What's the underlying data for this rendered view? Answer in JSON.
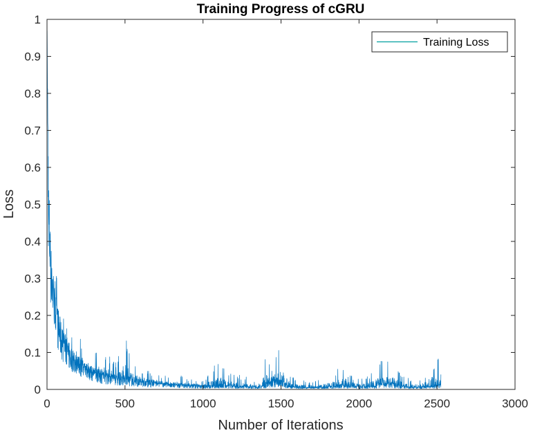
{
  "chart_data": {
    "type": "line",
    "title": "Training Progress of cGRU",
    "xlabel": "Number of Iterations",
    "ylabel": "Loss",
    "xlim": [
      0,
      3000
    ],
    "ylim": [
      0,
      1
    ],
    "x_ticks": [
      0,
      500,
      1000,
      1500,
      2000,
      2500,
      3000
    ],
    "x_tick_labels": [
      "0",
      "500",
      "1000",
      "1500",
      "2000",
      "2500",
      "3000"
    ],
    "y_ticks": [
      0,
      0.1,
      0.2,
      0.3,
      0.4,
      0.5,
      0.6,
      0.7,
      0.8,
      0.9,
      1
    ],
    "y_tick_labels": [
      "0",
      "0.1",
      "0.2",
      "0.3",
      "0.4",
      "0.5",
      "0.6",
      "0.7",
      "0.8",
      "0.9",
      "1"
    ],
    "grid": false,
    "legend_position": "top-right",
    "series": [
      {
        "name": "Training Loss",
        "color": "#0072BD",
        "legend_color": "#00A0A0",
        "x": [
          1,
          10,
          25,
          50,
          75,
          100,
          150,
          200,
          250,
          300,
          350,
          400,
          450,
          500,
          550,
          600,
          650,
          700,
          750,
          800,
          850,
          900,
          950,
          1000,
          1050,
          1100,
          1150,
          1200,
          1250,
          1300,
          1350,
          1400,
          1450,
          1500,
          1550,
          1600,
          1650,
          1700,
          1750,
          1800,
          1850,
          1900,
          1950,
          2000,
          2050,
          2100,
          2150,
          2200,
          2250,
          2300,
          2350,
          2400,
          2450,
          2500,
          2525
        ],
        "y_low": [
          0.55,
          0.3,
          0.2,
          0.12,
          0.08,
          0.06,
          0.04,
          0.03,
          0.02,
          0.015,
          0.01,
          0.008,
          0.006,
          0.005,
          0.004,
          0.004,
          0.003,
          0.003,
          0.002,
          0.002,
          0.002,
          0.002,
          0.001,
          0.001,
          0.001,
          0.001,
          0.001,
          0.001,
          0.001,
          0.001,
          0.001,
          0.001,
          0.002,
          0.002,
          0.002,
          0.001,
          0.001,
          0.001,
          0.001,
          0.001,
          0.001,
          0.001,
          0.001,
          0.001,
          0.001,
          0.001,
          0.001,
          0.001,
          0.001,
          0.001,
          0.001,
          0.001,
          0.001,
          0.001,
          0.001
        ],
        "y_mean": [
          0.95,
          0.5,
          0.33,
          0.23,
          0.17,
          0.13,
          0.09,
          0.07,
          0.055,
          0.045,
          0.038,
          0.033,
          0.03,
          0.028,
          0.024,
          0.02,
          0.017,
          0.015,
          0.013,
          0.012,
          0.011,
          0.01,
          0.009,
          0.009,
          0.008,
          0.008,
          0.009,
          0.008,
          0.007,
          0.007,
          0.006,
          0.012,
          0.018,
          0.02,
          0.008,
          0.005,
          0.005,
          0.005,
          0.005,
          0.006,
          0.008,
          0.012,
          0.008,
          0.006,
          0.006,
          0.007,
          0.018,
          0.015,
          0.01,
          0.006,
          0.005,
          0.006,
          0.007,
          0.01,
          0.012
        ],
        "y_peak": [
          0.97,
          0.6,
          0.45,
          0.33,
          0.28,
          0.24,
          0.18,
          0.15,
          0.12,
          0.1,
          0.11,
          0.09,
          0.08,
          0.16,
          0.08,
          0.06,
          0.05,
          0.045,
          0.04,
          0.035,
          0.04,
          0.03,
          0.03,
          0.025,
          0.06,
          0.085,
          0.05,
          0.04,
          0.04,
          0.03,
          0.03,
          0.09,
          0.07,
          0.13,
          0.05,
          0.03,
          0.025,
          0.025,
          0.025,
          0.04,
          0.05,
          0.07,
          0.04,
          0.03,
          0.035,
          0.06,
          0.08,
          0.075,
          0.05,
          0.04,
          0.03,
          0.03,
          0.07,
          0.095,
          0.095
        ]
      }
    ]
  }
}
